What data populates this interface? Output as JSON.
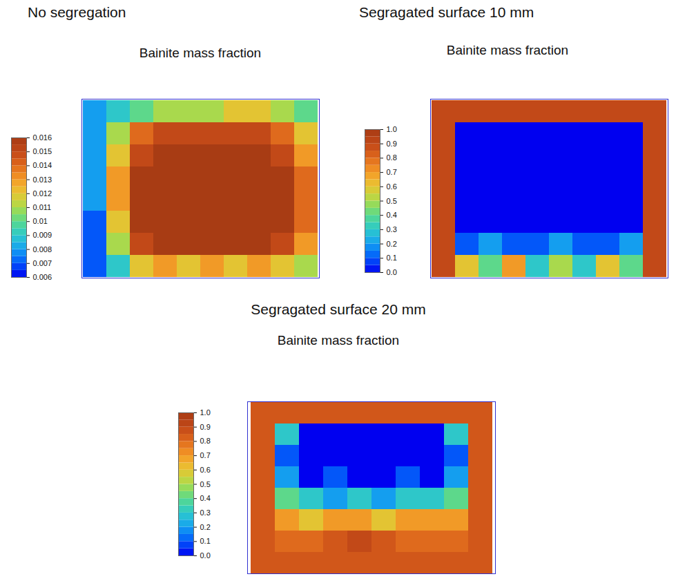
{
  "chart_data": [
    {
      "type": "heatmap",
      "title": "No segregation",
      "subtitle": "Bainite mass fraction",
      "tick_labels": false,
      "colorbar_range": [
        0.006,
        0.016
      ],
      "colorbar_ticks": [
        0.006,
        0.007,
        0.008,
        0.009,
        0.01,
        0.011,
        0.012,
        0.013,
        0.014,
        0.015,
        0.016
      ],
      "cells": [
        [
          0.008,
          0.009,
          0.01,
          0.011,
          0.011,
          0.011,
          0.012,
          0.012,
          0.011,
          0.01
        ],
        [
          0.008,
          0.011,
          0.014,
          0.015,
          0.015,
          0.015,
          0.015,
          0.015,
          0.014,
          0.012
        ],
        [
          0.008,
          0.012,
          0.015,
          0.016,
          0.016,
          0.016,
          0.016,
          0.016,
          0.015,
          0.013
        ],
        [
          0.008,
          0.013,
          0.016,
          0.016,
          0.016,
          0.016,
          0.016,
          0.016,
          0.016,
          0.014
        ],
        [
          0.008,
          0.013,
          0.016,
          0.016,
          0.016,
          0.016,
          0.016,
          0.016,
          0.016,
          0.014
        ],
        [
          0.007,
          0.012,
          0.016,
          0.016,
          0.016,
          0.016,
          0.016,
          0.016,
          0.016,
          0.014
        ],
        [
          0.007,
          0.011,
          0.015,
          0.016,
          0.016,
          0.016,
          0.016,
          0.016,
          0.015,
          0.013
        ],
        [
          0.007,
          0.009,
          0.012,
          0.013,
          0.012,
          0.013,
          0.012,
          0.013,
          0.012,
          0.011
        ]
      ]
    },
    {
      "type": "heatmap",
      "title": "Segragated surface 10 mm",
      "subtitle": "Bainite mass fraction",
      "tick_labels": false,
      "colorbar_range": [
        0,
        1
      ],
      "colorbar_ticks": [
        {
          "value": 0,
          "label": "0.0"
        },
        0.1,
        0.2,
        0.3,
        0.4,
        0.5,
        0.6,
        0.7,
        0.8,
        0.9,
        {
          "value": 1,
          "label": "1.0"
        }
      ],
      "cells": [
        [
          0.9,
          0.9,
          0.9,
          0.9,
          0.9,
          0.9,
          0.9,
          0.9,
          0.9,
          0.9
        ],
        [
          0.9,
          0.0,
          0.0,
          0.0,
          0.0,
          0.0,
          0.0,
          0.0,
          0.0,
          0.9
        ],
        [
          0.9,
          0.0,
          0.0,
          0.0,
          0.0,
          0.0,
          0.0,
          0.0,
          0.0,
          0.9
        ],
        [
          0.9,
          0.0,
          0.0,
          0.0,
          0.0,
          0.0,
          0.0,
          0.0,
          0.0,
          0.9
        ],
        [
          0.9,
          0.0,
          0.0,
          0.0,
          0.0,
          0.0,
          0.0,
          0.0,
          0.0,
          0.9
        ],
        [
          0.9,
          0.0,
          0.0,
          0.0,
          0.0,
          0.0,
          0.0,
          0.0,
          0.0,
          0.9
        ],
        [
          0.9,
          0.1,
          0.2,
          0.1,
          0.1,
          0.2,
          0.1,
          0.1,
          0.2,
          0.9
        ],
        [
          0.9,
          0.6,
          0.4,
          0.7,
          0.3,
          0.5,
          0.3,
          0.6,
          0.4,
          0.9
        ]
      ]
    },
    {
      "type": "heatmap",
      "title": "Segragated surface 20 mm",
      "subtitle": "Bainite mass fraction",
      "tick_labels": false,
      "colorbar_range": [
        0,
        1
      ],
      "colorbar_ticks": [
        {
          "value": 0,
          "label": "0.0"
        },
        0.1,
        0.2,
        0.3,
        0.4,
        0.5,
        0.6,
        0.7,
        0.8,
        0.9,
        {
          "value": 1,
          "label": "1.0"
        }
      ],
      "cells": [
        [
          0.85,
          0.85,
          0.85,
          0.85,
          0.85,
          0.85,
          0.85,
          0.85,
          0.85,
          0.85
        ],
        [
          0.85,
          0.3,
          0.0,
          0.0,
          0.0,
          0.0,
          0.0,
          0.0,
          0.3,
          0.85
        ],
        [
          0.85,
          0.1,
          0.0,
          0.0,
          0.0,
          0.0,
          0.0,
          0.0,
          0.1,
          0.85
        ],
        [
          0.85,
          0.2,
          0.0,
          0.1,
          0.0,
          0.0,
          0.1,
          0.0,
          0.2,
          0.85
        ],
        [
          0.85,
          0.4,
          0.3,
          0.2,
          0.3,
          0.2,
          0.3,
          0.3,
          0.4,
          0.85
        ],
        [
          0.85,
          0.7,
          0.6,
          0.7,
          0.7,
          0.6,
          0.7,
          0.7,
          0.7,
          0.85
        ],
        [
          0.85,
          0.8,
          0.8,
          0.85,
          0.9,
          0.85,
          0.8,
          0.8,
          0.8,
          0.85
        ],
        [
          0.85,
          0.85,
          0.85,
          0.85,
          0.85,
          0.85,
          0.85,
          0.85,
          0.85,
          0.85
        ]
      ]
    }
  ]
}
